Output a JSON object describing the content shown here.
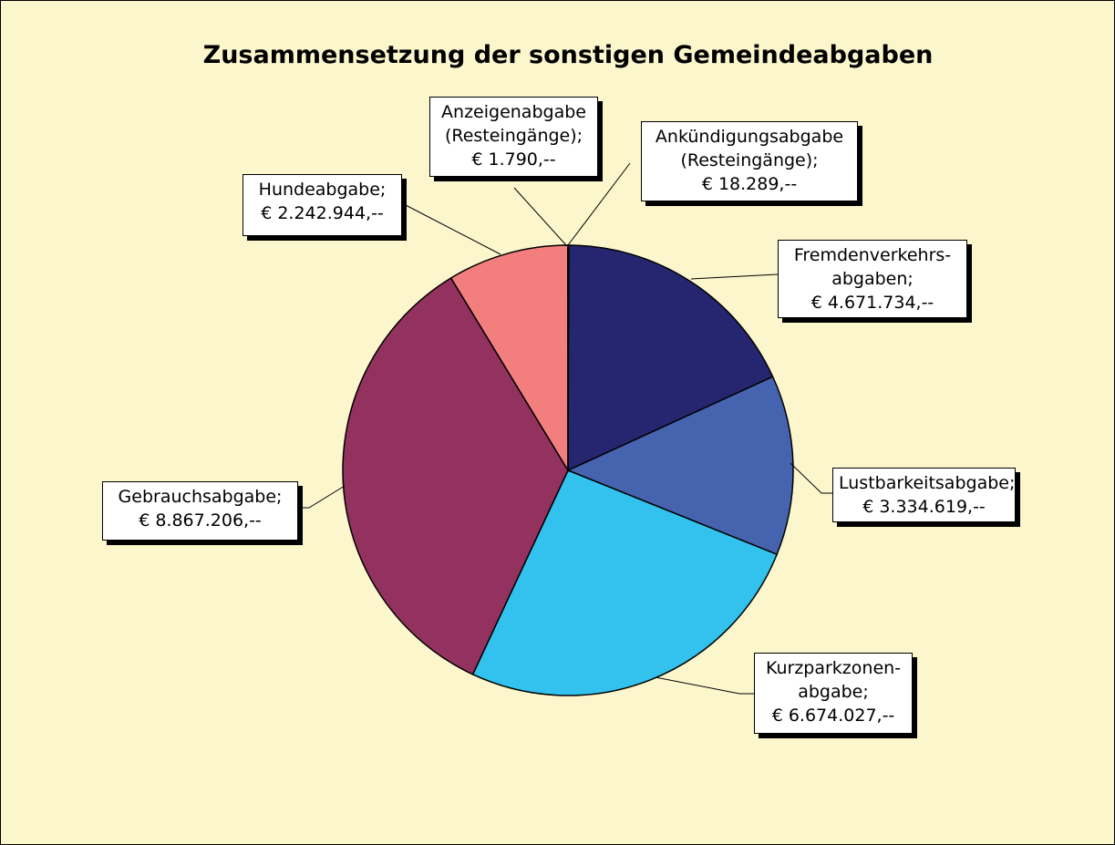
{
  "chart_data": {
    "type": "pie",
    "title": "Zusammensetzung der sonstigen Gemeindeabgaben",
    "categories": [
      "Ankündigungsabgabe\n(Resteingänge);",
      "Fremdenverkehrs-\nabgaben;",
      "Lustbarkeitsabgabe;",
      "Kurzparkzonen-\nabgabe;",
      "Gebrauchsabgabe;",
      "Hundeabgabe;",
      "Anzeigenabgabe\n(Resteingänge);"
    ],
    "values": [
      18289,
      4671734,
      3334619,
      6674027,
      8867206,
      2242944,
      1790
    ],
    "value_labels": [
      "€ 18.289,--",
      "€ 4.671.734,--",
      "€ 3.334.619,--",
      "€ 6.674.027,--",
      "€ 8.867.206,--",
      "€ 2.242.944,--",
      "€ 1.790,--"
    ],
    "colors": [
      "#ffff99",
      "#262670",
      "#4563ae",
      "#33c2ee",
      "#93325e",
      "#f27e7e",
      "#00ffff"
    ]
  }
}
